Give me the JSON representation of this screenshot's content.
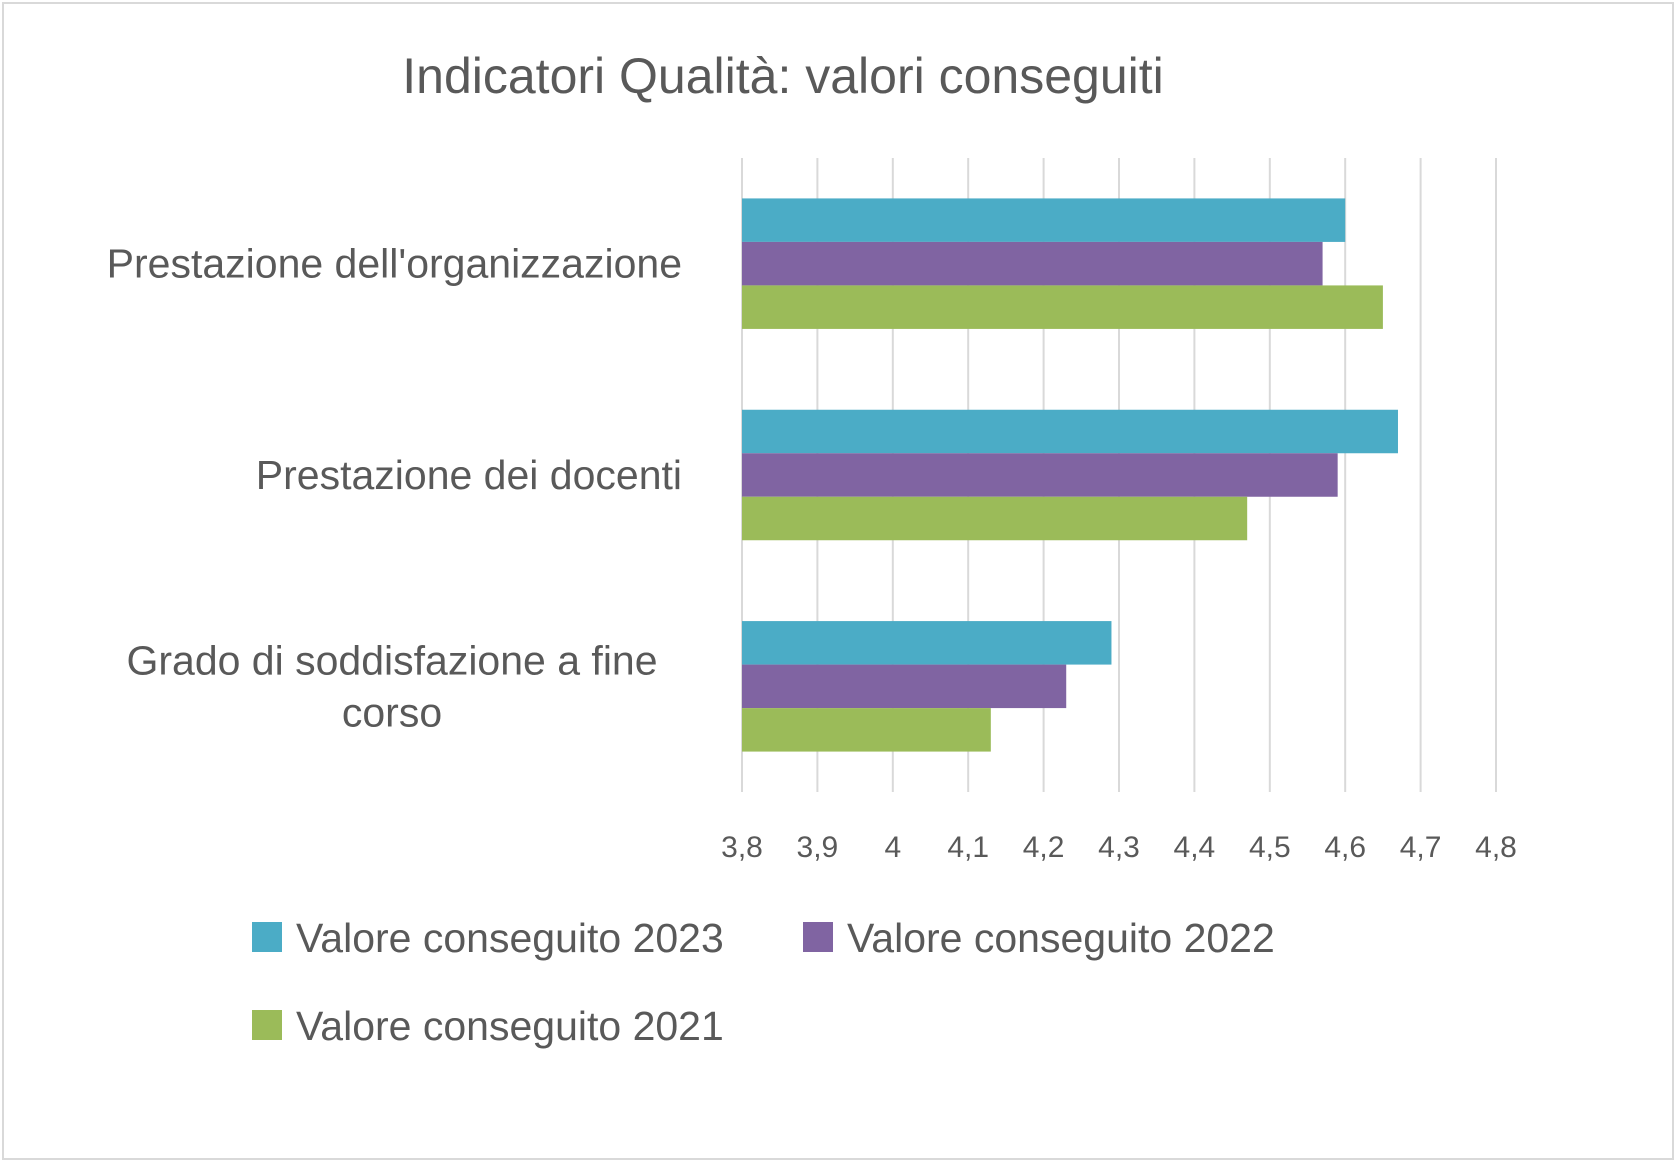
{
  "chart_data": {
    "type": "bar",
    "orientation": "horizontal",
    "title": "Indicatori Qualità: valori conseguiti",
    "categories": [
      "Prestazione dell'organizzazione",
      "Prestazione dei docenti",
      "Grado di soddisfazione a fine corso"
    ],
    "category_lines": [
      [
        "Prestazione dell'organizzazione"
      ],
      [
        "Prestazione dei docenti"
      ],
      [
        "Grado di soddisfazione a fine",
        "corso"
      ]
    ],
    "series": [
      {
        "name": "Valore conseguito 2023",
        "color": "#4BACC6",
        "values": [
          4.6,
          4.67,
          4.29
        ]
      },
      {
        "name": "Valore conseguito 2022",
        "color": "#8064A2",
        "values": [
          4.57,
          4.59,
          4.23
        ]
      },
      {
        "name": "Valore conseguito 2021",
        "color": "#9BBB59",
        "values": [
          4.65,
          4.47,
          4.13
        ]
      }
    ],
    "xlim": [
      3.8,
      4.8
    ],
    "xticks": [
      "3,8",
      "3,9",
      "4",
      "4,1",
      "4,2",
      "4,3",
      "4,4",
      "4,5",
      "4,6",
      "4,7",
      "4,8"
    ],
    "xlabel": "",
    "ylabel": "",
    "grid": "vertical",
    "legend_position": "bottom"
  }
}
